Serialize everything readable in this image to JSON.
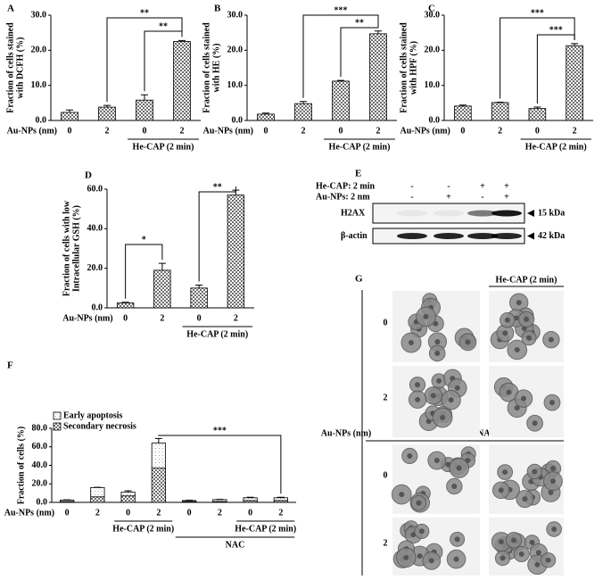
{
  "chart_data": [
    {
      "type": "bar",
      "panel": "A",
      "ylabel": [
        "Fraction of cells stained",
        "with DCFH (%)"
      ],
      "xlabel": "Au-NPs (nm)",
      "categories": [
        "0",
        "2",
        "0",
        "2"
      ],
      "values": [
        2.3,
        3.8,
        5.8,
        22.5
      ],
      "errors": [
        0.7,
        0.5,
        1.5,
        0.3
      ],
      "color": "#6e6e6e",
      "ylim": [
        0,
        30
      ],
      "yticks": [
        {
          "value": 0,
          "label": "0.0"
        },
        {
          "value": 10,
          "label": "10.0"
        },
        {
          "value": 20,
          "label": "20.0"
        },
        {
          "value": 30,
          "label": "30.0"
        }
      ],
      "group_labels": [
        "He-CAP (2 min)"
      ],
      "annotations": [
        "**",
        "**"
      ]
    },
    {
      "type": "bar",
      "panel": "B",
      "ylabel": [
        "Fraction of cells stained",
        "with HE (%)"
      ],
      "xlabel": "Au-NPs (nm)",
      "categories": [
        "0",
        "2",
        "0",
        "2"
      ],
      "values": [
        1.8,
        4.8,
        11.2,
        24.7
      ],
      "errors": [
        0.3,
        0.6,
        0.2,
        0.8
      ],
      "color": "#6e6e6e",
      "ylim": [
        0,
        30
      ],
      "yticks": [
        {
          "value": 0,
          "label": "0.0"
        },
        {
          "value": 10,
          "label": "10.0"
        },
        {
          "value": 20,
          "label": "20.0"
        },
        {
          "value": 30,
          "label": "30.0"
        }
      ],
      "group_labels": [
        "He-CAP (2 min)"
      ],
      "annotations": [
        "***",
        "**"
      ]
    },
    {
      "type": "bar",
      "panel": "C",
      "ylabel": [
        "Fraction of cells stained",
        "with HPF (%)"
      ],
      "xlabel": "Au-NPs (nm)",
      "categories": [
        "0",
        "2",
        "0",
        "2"
      ],
      "values": [
        4.1,
        5.1,
        3.4,
        21.3
      ],
      "errors": [
        0.3,
        0.1,
        0.4,
        0.6
      ],
      "color": "#6e6e6e",
      "ylim": [
        0,
        30
      ],
      "yticks": [
        {
          "value": 0,
          "label": "0.0"
        },
        {
          "value": 10,
          "label": "10.0"
        },
        {
          "value": 20,
          "label": "20.0"
        },
        {
          "value": 30,
          "label": "30.0"
        }
      ],
      "group_labels": [
        "He-CAP (2 min)"
      ],
      "annotations": [
        "***",
        "***"
      ]
    },
    {
      "type": "bar",
      "panel": "D",
      "ylabel": [
        "Fraction of cells with low",
        "Intracellular GSH (%)"
      ],
      "xlabel": "Au-NPs (nm)",
      "categories": [
        "0",
        "2",
        "0",
        "2"
      ],
      "values": [
        2.5,
        19,
        10,
        57
      ],
      "errors": [
        0.3,
        3.5,
        1.5,
        2.5
      ],
      "color": "#6e6e6e",
      "ylim": [
        0,
        60
      ],
      "yticks": [
        {
          "value": 0,
          "label": "0.0"
        },
        {
          "value": 20,
          "label": "20.0"
        },
        {
          "value": 40,
          "label": "40.0"
        },
        {
          "value": 60,
          "label": "60.0"
        }
      ],
      "group_labels": [
        "He-CAP (2 min)"
      ],
      "annotations": [
        "*",
        "**"
      ]
    },
    {
      "type": "stacked_bar",
      "panel": "F",
      "ylabel": [
        "Fraction of cells (%)"
      ],
      "xlabel": "Au-NPs (nm)",
      "categories": [
        "0",
        "2",
        "0",
        "2",
        "0",
        "2",
        "0",
        "2"
      ],
      "series": [
        {
          "name": "Early apoptosis",
          "color": "#d8d8d8",
          "values": [
            1.5,
            10,
            4,
            27,
            1,
            2,
            3,
            3
          ],
          "errors": [
            0.3,
            0.3,
            1.5,
            5,
            0.3,
            0.3,
            0.5,
            0.5
          ]
        },
        {
          "name": "Secondary necrosis",
          "color": "#6e6e6e",
          "values": [
            1,
            6,
            7,
            37,
            1,
            1,
            2,
            2
          ],
          "errors": [
            0.3,
            3,
            2,
            2,
            0.3,
            0.3,
            0.5,
            0.5
          ]
        }
      ],
      "ylim": [
        0,
        80
      ],
      "yticks": [
        {
          "value": 0,
          "label": "0.0"
        },
        {
          "value": 20,
          "label": "20.0"
        },
        {
          "value": 40,
          "label": "40.0"
        },
        {
          "value": 60,
          "label": "60.0"
        },
        {
          "value": 80,
          "label": "80.0"
        }
      ],
      "group_labels": [
        "He-CAP (2 min)",
        "He-CAP (2 min)",
        "NAC"
      ],
      "annotations": [
        "***"
      ]
    }
  ],
  "panel_e": {
    "label": "E",
    "rows": [
      "He-CAP: 2 min",
      "Au-NPs: 2 nm"
    ],
    "signs": [
      [
        "-",
        "-",
        "+",
        "+"
      ],
      [
        "-",
        "+",
        "-",
        "+"
      ]
    ],
    "bands": [
      "H2AX",
      "β-actin"
    ],
    "sizes": [
      "15 kDa",
      "42 kDa"
    ]
  },
  "panel_g": {
    "label": "G",
    "header": "He-CAP (2 min)",
    "section": "NAC",
    "axis_label": "Au-NPs (nm)",
    "row_labels": [
      "0",
      "2",
      "0",
      "2"
    ]
  }
}
